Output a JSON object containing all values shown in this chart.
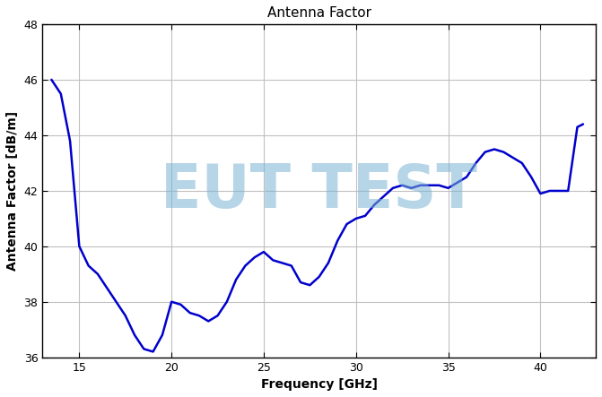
{
  "title": "Antenna Factor",
  "xlabel": "Frequency [GHz]",
  "ylabel": "Antenna Factor [dB/m]",
  "xlim": [
    13,
    43
  ],
  "ylim": [
    36,
    48
  ],
  "xticks": [
    15,
    20,
    25,
    30,
    35,
    40
  ],
  "yticks": [
    36,
    38,
    40,
    42,
    44,
    46,
    48
  ],
  "line_color": "#0000CC",
  "line_width": 1.8,
  "watermark_text": "EUT TEST",
  "watermark_color": "#7ab4d4",
  "watermark_alpha": 0.55,
  "x": [
    13.5,
    14.0,
    14.5,
    15.0,
    15.5,
    16.0,
    16.5,
    17.0,
    17.5,
    18.0,
    18.5,
    19.0,
    19.5,
    20.0,
    20.5,
    21.0,
    21.5,
    22.0,
    22.5,
    23.0,
    23.5,
    24.0,
    24.5,
    25.0,
    25.5,
    26.0,
    26.5,
    27.0,
    27.5,
    28.0,
    28.5,
    29.0,
    29.5,
    30.0,
    30.5,
    31.0,
    31.5,
    32.0,
    32.5,
    33.0,
    33.5,
    34.0,
    34.5,
    35.0,
    35.5,
    36.0,
    36.5,
    37.0,
    37.5,
    38.0,
    38.5,
    39.0,
    39.5,
    40.0,
    40.5,
    41.0,
    41.5,
    42.0,
    42.3
  ],
  "y": [
    46.0,
    45.5,
    43.8,
    40.0,
    39.3,
    39.0,
    38.5,
    38.0,
    37.5,
    36.8,
    36.3,
    36.2,
    36.8,
    38.0,
    37.9,
    37.6,
    37.5,
    37.3,
    37.5,
    38.0,
    38.8,
    39.3,
    39.6,
    39.8,
    39.5,
    39.4,
    39.3,
    38.7,
    38.6,
    38.9,
    39.4,
    40.2,
    40.8,
    41.0,
    41.1,
    41.5,
    41.8,
    42.1,
    42.2,
    42.1,
    42.2,
    42.2,
    42.2,
    42.1,
    42.3,
    42.5,
    43.0,
    43.4,
    43.5,
    43.4,
    43.2,
    43.0,
    42.5,
    41.9,
    42.0,
    42.0,
    42.0,
    44.3,
    44.4
  ]
}
